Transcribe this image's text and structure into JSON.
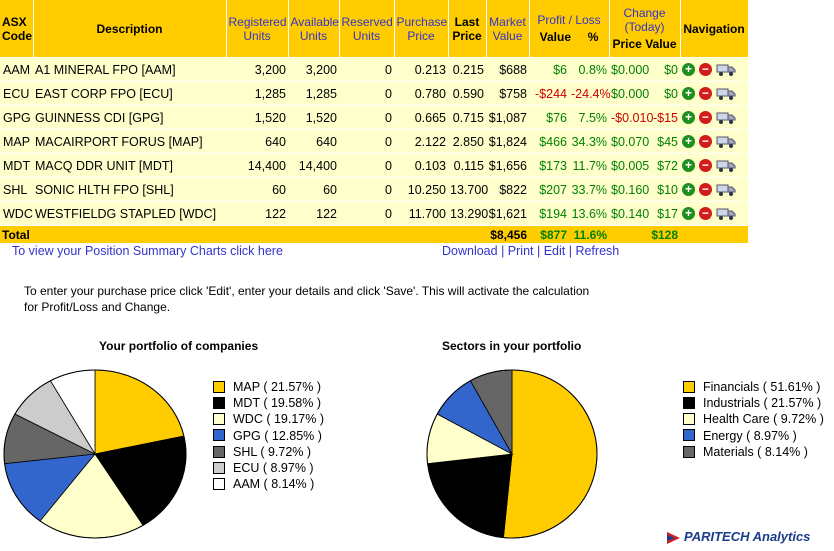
{
  "table": {
    "headers": {
      "code_line1": "ASX",
      "code_line2": "Code",
      "description": "Description",
      "registered_line1": "Registered",
      "registered_line2": "Units",
      "available_line1": "Available",
      "available_line2": "Units",
      "reserved_line1": "Reserved",
      "reserved_line2": "Units",
      "purchase_line1": "Purchase",
      "purchase_line2": "Price",
      "last_line1": "Last",
      "last_line2": "Price",
      "market_line1": "Market",
      "market_line2": "Value",
      "profit_loss": "Profit / Loss",
      "pl_value": "Value",
      "pl_percent": "%",
      "change_line1": "Change",
      "change_line2": "(Today)",
      "change_price": "Price",
      "change_value": "Value",
      "navigation": "Navigation"
    },
    "rows": [
      {
        "code": "AAM",
        "description": "A1 MINERAL FPO [AAM]",
        "registered": "3,200",
        "available": "3,200",
        "reserved": "0",
        "purchase": "0.213",
        "last": "0.215",
        "market": "$688",
        "pl_value": "$6",
        "pl_pct": "0.8%",
        "chg_price": "$0.000",
        "chg_value": "$0",
        "pl_positive": true,
        "chg_positive": true
      },
      {
        "code": "ECU",
        "description": "EAST CORP FPO [ECU]",
        "registered": "1,285",
        "available": "1,285",
        "reserved": "0",
        "purchase": "0.780",
        "last": "0.590",
        "market": "$758",
        "pl_value": "-$244",
        "pl_pct": "-24.4%",
        "chg_price": "$0.000",
        "chg_value": "$0",
        "pl_positive": false,
        "chg_positive": true
      },
      {
        "code": "GPG",
        "description": "GUINNESS CDI [GPG]",
        "registered": "1,520",
        "available": "1,520",
        "reserved": "0",
        "purchase": "0.665",
        "last": "0.715",
        "market": "$1,087",
        "pl_value": "$76",
        "pl_pct": "7.5%",
        "chg_price": "-$0.010",
        "chg_value": "-$15",
        "pl_positive": true,
        "chg_positive": false
      },
      {
        "code": "MAP",
        "description": "MACAIRPORT FORUS [MAP]",
        "registered": "640",
        "available": "640",
        "reserved": "0",
        "purchase": "2.122",
        "last": "2.850",
        "market": "$1,824",
        "pl_value": "$466",
        "pl_pct": "34.3%",
        "chg_price": "$0.070",
        "chg_value": "$45",
        "pl_positive": true,
        "chg_positive": true
      },
      {
        "code": "MDT",
        "description": "MACQ DDR UNIT [MDT]",
        "registered": "14,400",
        "available": "14,400",
        "reserved": "0",
        "purchase": "0.103",
        "last": "0.115",
        "market": "$1,656",
        "pl_value": "$173",
        "pl_pct": "11.7%",
        "chg_price": "$0.005",
        "chg_value": "$72",
        "pl_positive": true,
        "chg_positive": true
      },
      {
        "code": "SHL",
        "description": "SONIC HLTH FPO [SHL]",
        "registered": "60",
        "available": "60",
        "reserved": "0",
        "purchase": "10.250",
        "last": "13.700",
        "market": "$822",
        "pl_value": "$207",
        "pl_pct": "33.7%",
        "chg_price": "$0.160",
        "chg_value": "$10",
        "pl_positive": true,
        "chg_positive": true
      },
      {
        "code": "WDC",
        "description": "WESTFIELDG STAPLED [WDC]",
        "registered": "122",
        "available": "122",
        "reserved": "0",
        "purchase": "11.700",
        "last": "13.290",
        "market": "$1,621",
        "pl_value": "$194",
        "pl_pct": "13.6%",
        "chg_price": "$0.140",
        "chg_value": "$17",
        "pl_positive": true,
        "chg_positive": true
      }
    ],
    "total": {
      "label": "Total",
      "market": "$8,456",
      "pl_value": "$877",
      "pl_pct": "11.6%",
      "chg_value": "$128"
    },
    "nav_icons": [
      "add-icon",
      "remove-icon",
      "truck-icon"
    ]
  },
  "links": {
    "charts": "To view your Position Summary Charts click here",
    "download": "Download",
    "print": "Print",
    "edit": "Edit",
    "refresh": "Refresh",
    "separator": " | "
  },
  "info_text": "To enter your purchase price click 'Edit', enter your details and click 'Save'. This will activate the calculation for Profit/Loss and Change.",
  "colors": {
    "header_bg": "#ffcc00",
    "row_bg": "#ffffcc",
    "positive": "#008000",
    "negative": "#cc0000",
    "link": "#3333cc"
  },
  "chart_data": [
    {
      "type": "pie",
      "title": "Your portfolio of companies",
      "categories": [
        "MAP",
        "MDT",
        "WDC",
        "GPG",
        "SHL",
        "ECU",
        "AAM"
      ],
      "values": [
        21.57,
        19.58,
        19.17,
        12.85,
        9.72,
        8.97,
        8.14
      ],
      "legend_labels": [
        "MAP ( 21.57% )",
        "MDT ( 19.58% )",
        "WDC ( 19.17% )",
        "GPG ( 12.85% )",
        "SHL ( 9.72% )",
        "ECU ( 8.97% )",
        "AAM ( 8.14% )"
      ],
      "colors": [
        "#ffcc00",
        "#000000",
        "#ffffcc",
        "#3366cc",
        "#666666",
        "#cccccc",
        "#ffffff"
      ],
      "legend_placement": "right"
    },
    {
      "type": "pie",
      "title": "Sectors in your portfolio",
      "categories": [
        "Financials",
        "Industrials",
        "Health Care",
        "Energy",
        "Materials"
      ],
      "values": [
        51.61,
        21.57,
        9.72,
        8.97,
        8.14
      ],
      "legend_labels": [
        "Financials ( 51.61% )",
        "Industrials ( 21.57% )",
        "Health Care ( 9.72% )",
        "Energy ( 8.97% )",
        "Materials ( 8.14% )"
      ],
      "colors": [
        "#ffcc00",
        "#000000",
        "#ffffcc",
        "#3366cc",
        "#666666"
      ],
      "legend_placement": "right"
    }
  ],
  "footer": {
    "brand": "PARITECH Analytics"
  }
}
